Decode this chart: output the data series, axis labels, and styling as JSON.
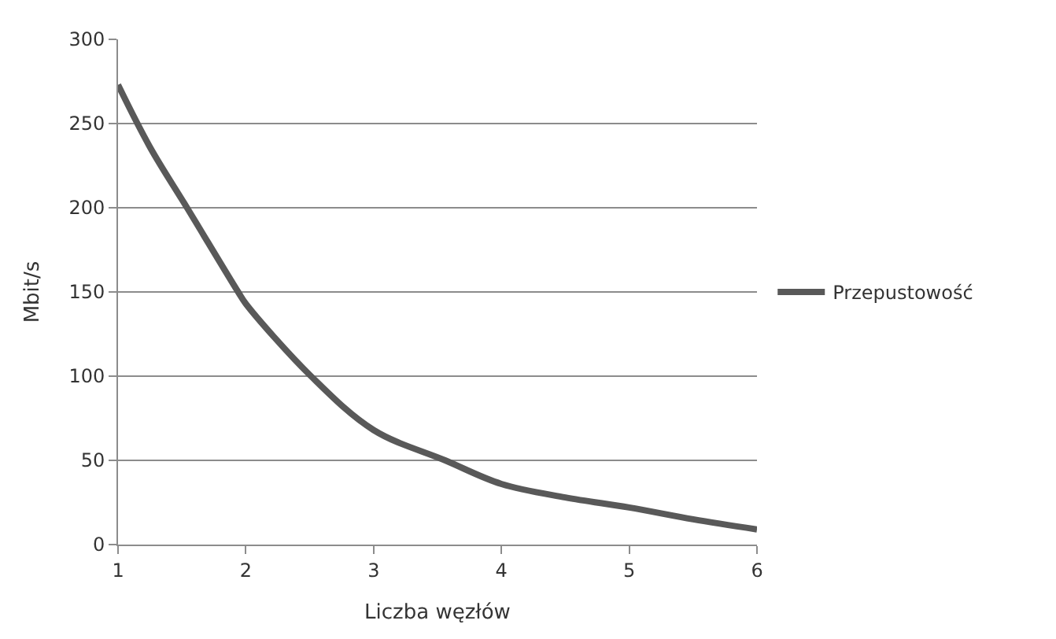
{
  "chart_data": {
    "type": "line",
    "xlabel": "Liczba węzłów",
    "ylabel": "Mbit/s",
    "x": [
      1,
      1.25,
      1.54,
      1.94,
      2,
      2.51,
      3,
      3.56,
      4,
      4.5,
      5,
      5.5,
      6
    ],
    "series": [
      {
        "name": "Przepustowość",
        "color": "#595959",
        "values": [
          273,
          236,
          200,
          150,
          143,
          100,
          68,
          50,
          36,
          28,
          22,
          15,
          9
        ]
      }
    ],
    "xlim": [
      1,
      6
    ],
    "xticks": [
      1,
      2,
      3,
      4,
      5,
      6
    ],
    "ylim": [
      0,
      300
    ],
    "yticks": [
      0,
      50,
      100,
      150,
      200,
      250,
      300
    ],
    "grid": "y",
    "legend": "right",
    "marker": "none",
    "line_style": "solid"
  }
}
